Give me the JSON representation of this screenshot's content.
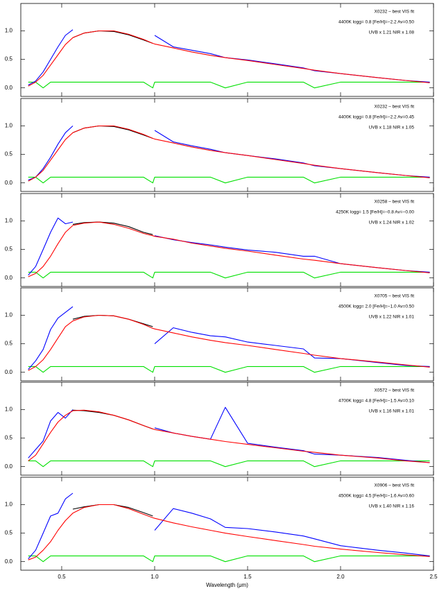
{
  "chart_data": [
    {
      "type": "line",
      "annotations": [
        "X0232 – best VIS fit",
        "4400K logg= 0.8 [Fe/H]=−2.2 Av=0.50",
        "UVB x 1.21  NIR x 1.08"
      ],
      "x": [
        0.32,
        0.36,
        0.4,
        0.44,
        0.48,
        0.52,
        0.56,
        0.62,
        0.7,
        0.78,
        0.86,
        0.94,
        0.99,
        1.0,
        1.1,
        1.2,
        1.3,
        1.38,
        1.5,
        1.65,
        1.8,
        1.86,
        2.0,
        2.2,
        2.35,
        2.48
      ],
      "xlim": [
        0.28,
        2.5
      ],
      "ylim": [
        -0.15,
        1.48
      ],
      "yticks": [
        {
          "value": 0,
          "label": "0.0"
        },
        0.5,
        {
          "value": 1,
          "label": "1.0"
        }
      ],
      "series": [
        {
          "color": "#00e000",
          "values": [
            0.1,
            0.1,
            0,
            0.1,
            0.1,
            0.1,
            0.1,
            0.1,
            0.1,
            0.1,
            0.1,
            0.1,
            0,
            0.1,
            0.1,
            0.1,
            0.1,
            0,
            0.1,
            0.1,
            0.1,
            0,
            0.1,
            0.1,
            0.1,
            0.1
          ]
        },
        {
          "color": "#0000ff",
          "values": [
            0.05,
            0.12,
            0.28,
            0.5,
            0.72,
            0.92,
            1.02,
            null,
            null,
            null,
            null,
            null,
            null,
            0.92,
            0.72,
            0.66,
            0.6,
            0.53,
            0.49,
            0.42,
            0.35,
            0.3,
            0.25,
            0.18,
            0.13,
            0.1
          ]
        },
        {
          "color": "#000000",
          "values": [
            null,
            null,
            null,
            null,
            null,
            null,
            0.88,
            0.96,
            1.0,
            0.99,
            0.93,
            0.84,
            0.78,
            null,
            null,
            null,
            null,
            null,
            null,
            null,
            null,
            null,
            null,
            null,
            null,
            null
          ]
        },
        {
          "color": "#ff0000",
          "values": [
            0.03,
            0.1,
            0.22,
            0.4,
            0.58,
            0.76,
            0.88,
            0.96,
            1.0,
            1.0,
            0.94,
            0.85,
            0.78,
            0.77,
            0.7,
            0.63,
            0.57,
            0.53,
            0.48,
            0.41,
            0.34,
            0.31,
            0.25,
            0.18,
            0.13,
            0.09
          ]
        }
      ]
    },
    {
      "type": "line",
      "annotations": [
        "X0232 – best VIS fit",
        "4400K logg= 0.8 [Fe/H]=−2.2 Av=0.45",
        "UVB x 1.18  NIR x 1.05"
      ],
      "x": [
        0.32,
        0.36,
        0.4,
        0.44,
        0.48,
        0.52,
        0.56,
        0.62,
        0.7,
        0.78,
        0.86,
        0.94,
        0.99,
        1.0,
        1.1,
        1.2,
        1.3,
        1.38,
        1.5,
        1.65,
        1.8,
        1.86,
        2.0,
        2.2,
        2.35,
        2.48
      ],
      "xlim": [
        0.28,
        2.5
      ],
      "ylim": [
        -0.15,
        1.48
      ],
      "yticks": [
        {
          "value": 0,
          "label": "0.0"
        },
        0.5,
        {
          "value": 1,
          "label": "1.0"
        }
      ],
      "series": [
        {
          "color": "#00e000",
          "values": [
            0.1,
            0.1,
            0,
            0.1,
            0.1,
            0.1,
            0.1,
            0.1,
            0.1,
            0.1,
            0.1,
            0.1,
            0,
            0.1,
            0.1,
            0.1,
            0.1,
            0,
            0.1,
            0.1,
            0.1,
            0,
            0.1,
            0.1,
            0.1,
            0.1
          ]
        },
        {
          "color": "#0000ff",
          "values": [
            0.05,
            0.1,
            0.25,
            0.45,
            0.68,
            0.88,
            1.0,
            null,
            null,
            null,
            null,
            null,
            null,
            0.92,
            0.72,
            0.65,
            0.59,
            0.53,
            0.48,
            0.42,
            0.35,
            0.3,
            0.25,
            0.18,
            0.13,
            0.1
          ]
        },
        {
          "color": "#000000",
          "values": [
            null,
            null,
            null,
            null,
            null,
            null,
            0.88,
            0.96,
            1.0,
            0.99,
            0.93,
            0.84,
            0.78,
            null,
            null,
            null,
            null,
            null,
            null,
            null,
            null,
            null,
            null,
            null,
            null,
            null
          ]
        },
        {
          "color": "#ff0000",
          "values": [
            0.03,
            0.1,
            0.22,
            0.4,
            0.58,
            0.76,
            0.88,
            0.96,
            1.0,
            1.0,
            0.94,
            0.85,
            0.78,
            0.77,
            0.7,
            0.63,
            0.57,
            0.53,
            0.48,
            0.41,
            0.34,
            0.31,
            0.25,
            0.18,
            0.13,
            0.09
          ]
        }
      ]
    },
    {
      "type": "line",
      "annotations": [
        "X0258 – best VIS fit",
        "4250K logg= 1.5 [Fe/H]=−0.8 Av=−0.00",
        "UVB x 1.24  NIR x 1.02"
      ],
      "x": [
        0.32,
        0.36,
        0.4,
        0.44,
        0.48,
        0.52,
        0.56,
        0.62,
        0.7,
        0.78,
        0.86,
        0.94,
        0.99,
        1.0,
        1.1,
        1.2,
        1.3,
        1.38,
        1.5,
        1.65,
        1.8,
        1.86,
        2.0,
        2.2,
        2.35,
        2.48
      ],
      "xlim": [
        0.28,
        2.5
      ],
      "ylim": [
        -0.15,
        1.48
      ],
      "yticks": [
        {
          "value": 0,
          "label": "0.0"
        },
        0.5,
        {
          "value": 1,
          "label": "1.0"
        }
      ],
      "series": [
        {
          "color": "#00e000",
          "values": [
            0.1,
            0.1,
            0,
            0.1,
            0.1,
            0.1,
            0.1,
            0.1,
            0.1,
            0.1,
            0.1,
            0.1,
            0,
            0.1,
            0.1,
            0.1,
            0.1,
            0,
            0.1,
            0.1,
            0.1,
            0,
            0.1,
            0.1,
            0.1,
            0.1
          ]
        },
        {
          "color": "#0000ff",
          "values": [
            0.05,
            0.2,
            0.5,
            0.8,
            1.05,
            0.95,
            0.98,
            null,
            null,
            null,
            null,
            null,
            null,
            0.74,
            0.67,
            0.62,
            0.58,
            0.54,
            0.49,
            0.45,
            0.38,
            0.38,
            0.25,
            0.18,
            0.13,
            0.1
          ]
        },
        {
          "color": "#000000",
          "values": [
            null,
            null,
            null,
            null,
            null,
            null,
            0.94,
            0.97,
            0.98,
            0.96,
            0.9,
            0.8,
            0.76,
            null,
            null,
            null,
            null,
            null,
            null,
            null,
            null,
            null,
            null,
            null,
            null,
            null
          ]
        },
        {
          "color": "#ff0000",
          "values": [
            0.02,
            0.08,
            0.2,
            0.38,
            0.6,
            0.8,
            0.92,
            0.96,
            0.98,
            0.94,
            0.87,
            0.78,
            0.74,
            0.73,
            0.68,
            0.61,
            0.56,
            0.52,
            0.47,
            0.4,
            0.33,
            0.31,
            0.25,
            0.18,
            0.13,
            0.09
          ]
        }
      ]
    },
    {
      "type": "line",
      "annotations": [
        "X0705 – best VIS fit",
        "4500K logg= 2.0 [Fe/H]=−1.0 Av=0.50",
        "UVB x 1.22  NIR x 1.01"
      ],
      "x": [
        0.32,
        0.36,
        0.4,
        0.44,
        0.48,
        0.52,
        0.56,
        0.62,
        0.7,
        0.78,
        0.86,
        0.94,
        0.99,
        1.0,
        1.1,
        1.2,
        1.3,
        1.38,
        1.5,
        1.65,
        1.8,
        1.86,
        2.0,
        2.2,
        2.35,
        2.48
      ],
      "xlim": [
        0.28,
        2.5
      ],
      "ylim": [
        -0.15,
        1.48
      ],
      "yticks": [
        {
          "value": 0,
          "label": "0.0"
        },
        0.5,
        {
          "value": 1,
          "label": "1.0"
        }
      ],
      "series": [
        {
          "color": "#00e000",
          "values": [
            0.1,
            0.1,
            0,
            0.1,
            0.1,
            0.1,
            0.1,
            0.1,
            0.1,
            0.1,
            0.1,
            0.1,
            0,
            0.1,
            0.1,
            0.1,
            0.1,
            0,
            0.1,
            0.1,
            0.1,
            0,
            0.1,
            0.1,
            0.1,
            0.1
          ]
        },
        {
          "color": "#0000ff",
          "values": [
            0.05,
            0.2,
            0.4,
            0.75,
            0.95,
            1.05,
            1.15,
            null,
            null,
            null,
            null,
            null,
            null,
            0.5,
            0.78,
            0.7,
            0.64,
            0.62,
            0.53,
            0.47,
            0.41,
            0.25,
            0.24,
            0.17,
            0.12,
            0.1
          ]
        },
        {
          "color": "#000000",
          "values": [
            null,
            null,
            null,
            null,
            null,
            null,
            0.93,
            0.98,
            1.0,
            0.99,
            0.93,
            0.85,
            0.8,
            null,
            null,
            null,
            null,
            null,
            null,
            null,
            null,
            null,
            null,
            null,
            null,
            null
          ]
        },
        {
          "color": "#ff0000",
          "values": [
            0.03,
            0.1,
            0.22,
            0.4,
            0.6,
            0.8,
            0.9,
            0.97,
            1.0,
            0.99,
            0.93,
            0.84,
            0.77,
            0.76,
            0.69,
            0.62,
            0.56,
            0.52,
            0.47,
            0.4,
            0.33,
            0.3,
            0.24,
            0.18,
            0.13,
            0.09
          ]
        }
      ]
    },
    {
      "type": "line",
      "annotations": [
        "X0572 – best VIS fit",
        "4700K logg= 4.8 [Fe/H]=−1.5 Av=0.10",
        "UVB x 1.16  NIR x 1.01"
      ],
      "x": [
        0.32,
        0.36,
        0.4,
        0.44,
        0.48,
        0.52,
        0.56,
        0.62,
        0.7,
        0.78,
        0.86,
        0.94,
        0.99,
        1.0,
        1.1,
        1.2,
        1.3,
        1.38,
        1.5,
        1.65,
        1.8,
        1.86,
        2.0,
        2.2,
        2.35,
        2.48
      ],
      "xlim": [
        0.28,
        2.5
      ],
      "ylim": [
        -0.15,
        1.48
      ],
      "yticks": [
        {
          "value": 0,
          "label": "0.0"
        },
        0.5,
        {
          "value": 1,
          "label": "1.0"
        }
      ],
      "series": [
        {
          "color": "#00e000",
          "values": [
            0.1,
            0.1,
            0,
            0.1,
            0.1,
            0.1,
            0.1,
            0.1,
            0.1,
            0.1,
            0.1,
            0.1,
            0,
            0.1,
            0.1,
            0.1,
            0.1,
            0,
            0.1,
            0.1,
            0.1,
            0,
            0.1,
            0.1,
            0.1,
            0.1
          ]
        },
        {
          "color": "#0000ff",
          "values": [
            0.15,
            0.3,
            0.45,
            0.8,
            0.95,
            0.85,
            1.0,
            null,
            null,
            null,
            null,
            null,
            null,
            0.68,
            0.59,
            0.53,
            0.48,
            1.04,
            0.41,
            0.34,
            0.28,
            0.22,
            0.2,
            0.16,
            0.11,
            0.07
          ]
        },
        {
          "color": "#000000",
          "values": [
            null,
            null,
            null,
            null,
            null,
            null,
            0.99,
            0.98,
            0.95,
            0.9,
            0.82,
            0.72,
            0.66,
            null,
            null,
            null,
            null,
            null,
            null,
            null,
            null,
            null,
            null,
            null,
            null,
            null
          ]
        },
        {
          "color": "#ff0000",
          "values": [
            0.1,
            0.2,
            0.4,
            0.6,
            0.78,
            0.9,
            0.98,
            0.99,
            0.96,
            0.9,
            0.82,
            0.72,
            0.66,
            0.65,
            0.59,
            0.53,
            0.48,
            0.44,
            0.39,
            0.33,
            0.27,
            0.25,
            0.2,
            0.15,
            0.1,
            0.07
          ]
        }
      ]
    },
    {
      "type": "line",
      "annotations": [
        "X0906 – best VIS fit",
        "4500K logg= 4.5 [Fe/H]=−1.6 Av=0.60",
        "UVB x 1.40  NIR x 1.16"
      ],
      "x": [
        0.32,
        0.36,
        0.4,
        0.44,
        0.48,
        0.52,
        0.56,
        0.62,
        0.7,
        0.78,
        0.86,
        0.94,
        0.99,
        1.0,
        1.1,
        1.2,
        1.3,
        1.38,
        1.5,
        1.65,
        1.8,
        1.86,
        2.0,
        2.2,
        2.35,
        2.48
      ],
      "xlim": [
        0.28,
        2.5
      ],
      "ylim": [
        -0.15,
        1.48
      ],
      "yticks": [
        {
          "value": 0,
          "label": "0.0"
        },
        0.5,
        {
          "value": 1,
          "label": "1.0"
        }
      ],
      "xticks": [
        0.5,
        {
          "value": 1,
          "label": "1.0"
        },
        1.5,
        {
          "value": 2,
          "label": "2.0"
        },
        2.5
      ],
      "x_label": "Wavelength (μm)",
      "series": [
        {
          "color": "#00e000",
          "values": [
            0.1,
            0.1,
            0,
            0.1,
            0.1,
            0.1,
            0.1,
            0.1,
            0.1,
            0.1,
            0.1,
            0.1,
            0,
            0.1,
            0.1,
            0.1,
            0.1,
            0,
            0.1,
            0.1,
            0.1,
            0,
            0.1,
            0.1,
            0.1,
            0.1
          ]
        },
        {
          "color": "#0000ff",
          "values": [
            0.05,
            0.2,
            0.5,
            0.8,
            0.85,
            1.1,
            1.2,
            null,
            null,
            null,
            null,
            null,
            null,
            0.55,
            0.93,
            0.85,
            0.75,
            0.6,
            0.58,
            0.52,
            0.45,
            0.4,
            0.28,
            0.2,
            0.15,
            0.1
          ]
        },
        {
          "color": "#000000",
          "values": [
            null,
            null,
            null,
            null,
            null,
            null,
            0.92,
            0.96,
            1.0,
            1.0,
            0.95,
            0.86,
            0.8,
            null,
            null,
            null,
            null,
            null,
            null,
            null,
            null,
            null,
            null,
            null,
            null,
            null
          ]
        },
        {
          "color": "#ff0000",
          "values": [
            0.03,
            0.08,
            0.2,
            0.35,
            0.55,
            0.72,
            0.85,
            0.95,
            1.0,
            1.0,
            0.93,
            0.83,
            0.77,
            0.76,
            0.68,
            0.61,
            0.55,
            0.5,
            0.44,
            0.37,
            0.3,
            0.27,
            0.22,
            0.16,
            0.12,
            0.09
          ]
        }
      ]
    }
  ]
}
